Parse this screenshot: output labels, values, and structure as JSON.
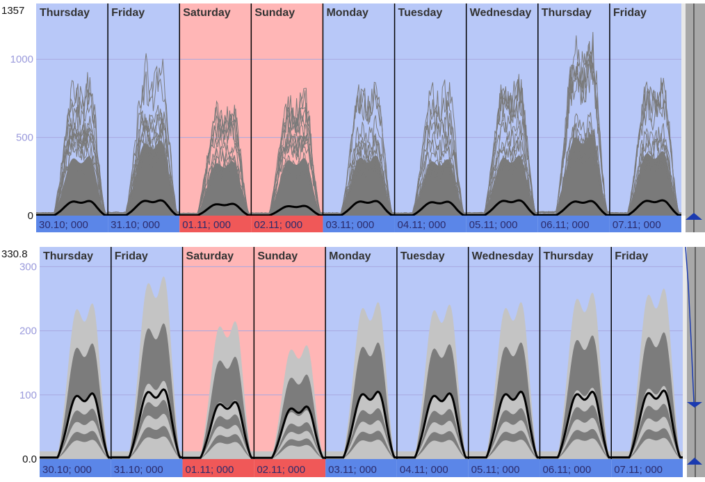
{
  "colors": {
    "weekday_bg": "#b8c8f8",
    "weekend_bg": "#ffb6b6",
    "weekday_bar": "#5b86e8",
    "weekend_bar": "#f05858",
    "grid": "#a8a8e0",
    "tick_text": "#9a9adc",
    "curve_grey": "#7a7a7a",
    "band_light": "#c4c4c4",
    "band_dark": "#7c7c7c",
    "mean_line": "#000000",
    "right_panel": "#a8a8a8",
    "slider_marker": "#1a3ab0"
  },
  "chart_data": [
    {
      "type": "line",
      "name": "individual-profiles",
      "y_max_label": "1357",
      "ylim": [
        0,
        1357
      ],
      "yticks": [
        0,
        500,
        1000
      ],
      "ytick_labels": [
        "0",
        "500",
        "1000"
      ],
      "grid": true,
      "days": [
        {
          "label": "Thursday",
          "date": "30.10; 000",
          "weekend": false,
          "peak": 950,
          "mean": 105
        },
        {
          "label": "Friday",
          "date": "31.10; 000",
          "weekend": false,
          "peak": 1200,
          "mean": 110
        },
        {
          "label": "Saturday",
          "date": "01.11; 000",
          "weekend": true,
          "peak": 870,
          "mean": 85
        },
        {
          "label": "Sunday",
          "date": "02.11; 000",
          "weekend": true,
          "peak": 920,
          "mean": 70
        },
        {
          "label": "Monday",
          "date": "03.11; 000",
          "weekend": false,
          "peak": 960,
          "mean": 105
        },
        {
          "label": "Tuesday",
          "date": "04.11; 000",
          "weekend": false,
          "peak": 900,
          "mean": 100
        },
        {
          "label": "Wednesday",
          "date": "05.11; 000",
          "weekend": false,
          "peak": 960,
          "mean": 110
        },
        {
          "label": "Thursday",
          "date": "06.11; 000",
          "weekend": false,
          "peak": 1300,
          "mean": 105
        },
        {
          "label": "Friday",
          "date": "07.11; 000",
          "weekend": false,
          "peak": 1030,
          "mean": 110
        }
      ]
    },
    {
      "type": "area",
      "name": "percentile-bands",
      "y_max_label": "330.8",
      "ylim": [
        0,
        330.8
      ],
      "yticks": [
        0,
        100,
        200,
        300
      ],
      "ytick_labels": [
        "0.0",
        "100",
        "200",
        "300"
      ],
      "grid": true,
      "days": [
        {
          "label": "Thursday",
          "date": "30.10; 000",
          "weekend": false,
          "peak": 260,
          "mean": 115
        },
        {
          "label": "Friday",
          "date": "31.10; 000",
          "weekend": false,
          "peak": 305,
          "mean": 122
        },
        {
          "label": "Saturday",
          "date": "01.11; 000",
          "weekend": true,
          "peak": 230,
          "mean": 100
        },
        {
          "label": "Sunday",
          "date": "02.11; 000",
          "weekend": true,
          "peak": 190,
          "mean": 92
        },
        {
          "label": "Monday",
          "date": "03.11; 000",
          "weekend": false,
          "peak": 262,
          "mean": 118
        },
        {
          "label": "Tuesday",
          "date": "04.11; 000",
          "weekend": false,
          "peak": 258,
          "mean": 115
        },
        {
          "label": "Wednesday",
          "date": "05.11; 000",
          "weekend": false,
          "peak": 262,
          "mean": 118
        },
        {
          "label": "Thursday",
          "date": "06.11; 000",
          "weekend": false,
          "peak": 278,
          "mean": 118
        },
        {
          "label": "Friday",
          "date": "07.11; 000",
          "weekend": false,
          "peak": 285,
          "mean": 120
        }
      ]
    }
  ]
}
